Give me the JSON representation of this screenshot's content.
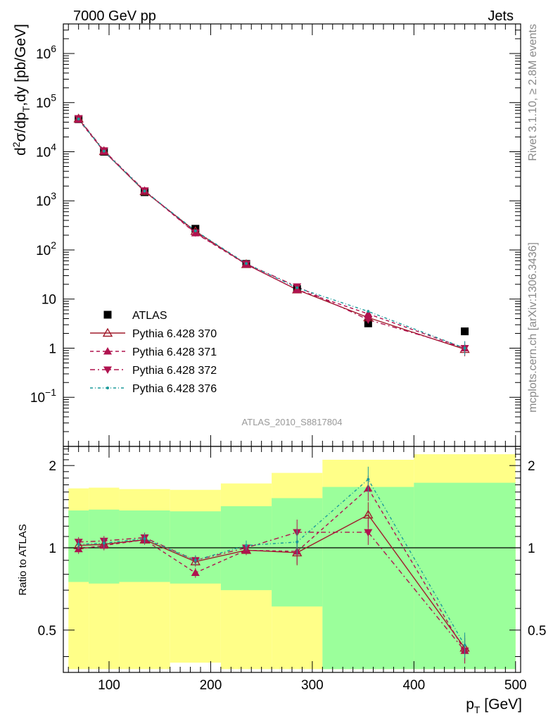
{
  "header": {
    "left_label": "7000 GeV pp",
    "right_label": "Jets"
  },
  "side_text": {
    "top": "Rivet 3.1.10, ≥ 2.8M events",
    "bottom": "mcplots.cern.ch [arXiv:1306.3436]"
  },
  "analysis_id": "ATLAS_2010_S8817804",
  "chart_data": [
    {
      "type": "scatter",
      "panel": "main",
      "ylabel": "d²σ/dp_T,dy [pb/GeV]",
      "ylabel_parts": {
        "d": "d",
        "sup": "2",
        "rest1": "σ/dp",
        "sub": "T",
        "rest2": ",dy [pb/GeV]"
      },
      "y_scale": "log",
      "xlim": [
        55,
        505
      ],
      "ylim": [
        0.01,
        4000000
      ],
      "y_ticks": [
        {
          "label_base": "10",
          "label_exp": "6",
          "value": 1000000
        },
        {
          "label_base": "10",
          "label_exp": "5",
          "value": 100000
        },
        {
          "label_base": "10",
          "label_exp": "4",
          "value": 10000
        },
        {
          "label_base": "10",
          "label_exp": "3",
          "value": 1000
        },
        {
          "label_base": "10",
          "label_exp": "2",
          "value": 100
        },
        {
          "label_base": "10",
          "label_exp": "",
          "value": 10
        },
        {
          "label_base": "1",
          "label_exp": "",
          "value": 1
        },
        {
          "label_base": "10",
          "label_exp": "−1",
          "value": 0.1
        }
      ],
      "x": [
        70,
        95,
        135,
        185,
        235,
        285,
        355,
        450
      ],
      "series": [
        {
          "name": "ATLAS",
          "values": [
            46000,
            10000,
            1500,
            270,
            52,
            16,
            3.2,
            2.2
          ],
          "color": "#000000",
          "marker": "square"
        },
        {
          "name": "Pythia 6.428 370",
          "values": [
            47000,
            10200,
            1550,
            240,
            51,
            15.5,
            4.2,
            0.95
          ],
          "color": "#a01c2c",
          "marker": "triangle-open",
          "dash": ""
        },
        {
          "name": "Pythia 6.428 371",
          "values": [
            45000,
            10100,
            1600,
            220,
            51,
            15.5,
            5.0,
            1.0
          ],
          "color": "#b0134f",
          "marker": "triangle-filled",
          "dash": "5,4"
        },
        {
          "name": "Pythia 6.428 372",
          "values": [
            48000,
            10600,
            1620,
            225,
            52,
            18,
            3.8,
            1.0
          ],
          "color": "#b0134f",
          "marker": "triangle-down",
          "dash": "7,4,2,4"
        },
        {
          "name": "Pythia 6.428 376",
          "values": [
            46500,
            10300,
            1580,
            245,
            53,
            17,
            5.6,
            1.0
          ],
          "color": "#1a9a9a",
          "marker": "point",
          "dash": "4,3,1,3"
        }
      ]
    },
    {
      "type": "line",
      "panel": "ratio",
      "ylabel": "Ratio to ATLAS",
      "y_scale": "log",
      "ylim": [
        0.35,
        2.35
      ],
      "xlim": [
        55,
        505
      ],
      "xlabel": "p_T [GeV]",
      "xlabel_parts": {
        "main": "p",
        "sub": "T",
        "rest": " [GeV]"
      },
      "x_ticks": [
        100,
        200,
        300,
        400,
        500
      ],
      "y_ticks": [
        {
          "label": "2",
          "value": 2
        },
        {
          "label": "1",
          "value": 1
        },
        {
          "label": "0.5",
          "value": 0.5
        }
      ],
      "x": [
        70,
        95,
        135,
        185,
        235,
        285,
        355,
        450
      ],
      "bands": {
        "edges": [
          60,
          80,
          110,
          160,
          210,
          260,
          310,
          400,
          500
        ],
        "yellow": [
          [
            0.36,
            1.65
          ],
          [
            0.36,
            1.66
          ],
          [
            0.36,
            1.64
          ],
          [
            0.38,
            1.63
          ],
          [
            0.36,
            1.72
          ],
          [
            0.36,
            1.88
          ],
          [
            0.36,
            2.1
          ],
          [
            0.36,
            2.2
          ]
        ],
        "green": [
          [
            0.75,
            1.37
          ],
          [
            0.74,
            1.38
          ],
          [
            0.75,
            1.37
          ],
          [
            0.74,
            1.36
          ],
          [
            0.7,
            1.42
          ],
          [
            0.61,
            1.52
          ],
          [
            0.36,
            1.67
          ],
          [
            0.36,
            1.73
          ]
        ]
      },
      "series": [
        {
          "name": "Pythia 6.428 370",
          "values": [
            1.02,
            1.03,
            1.07,
            0.89,
            0.98,
            0.96,
            1.32,
            0.43
          ],
          "color": "#a01c2c",
          "marker": "triangle-open",
          "dash": ""
        },
        {
          "name": "Pythia 6.428 371",
          "values": [
            0.99,
            1.02,
            1.07,
            0.81,
            0.98,
            0.97,
            1.65,
            0.42
          ],
          "color": "#b0134f",
          "marker": "triangle-filled",
          "dash": "5,4"
        },
        {
          "name": "Pythia 6.428 372",
          "values": [
            1.05,
            1.06,
            1.09,
            0.9,
            1.0,
            1.14,
            1.14,
            0.42
          ],
          "color": "#b0134f",
          "marker": "triangle-down",
          "dash": "7,4,2,4"
        },
        {
          "name": "Pythia 6.428 376",
          "values": [
            1.03,
            1.04,
            1.08,
            0.9,
            1.02,
            1.05,
            1.78,
            0.44
          ],
          "color": "#1a9a9a",
          "marker": "point",
          "dash": "4,3,1,3"
        }
      ]
    }
  ]
}
